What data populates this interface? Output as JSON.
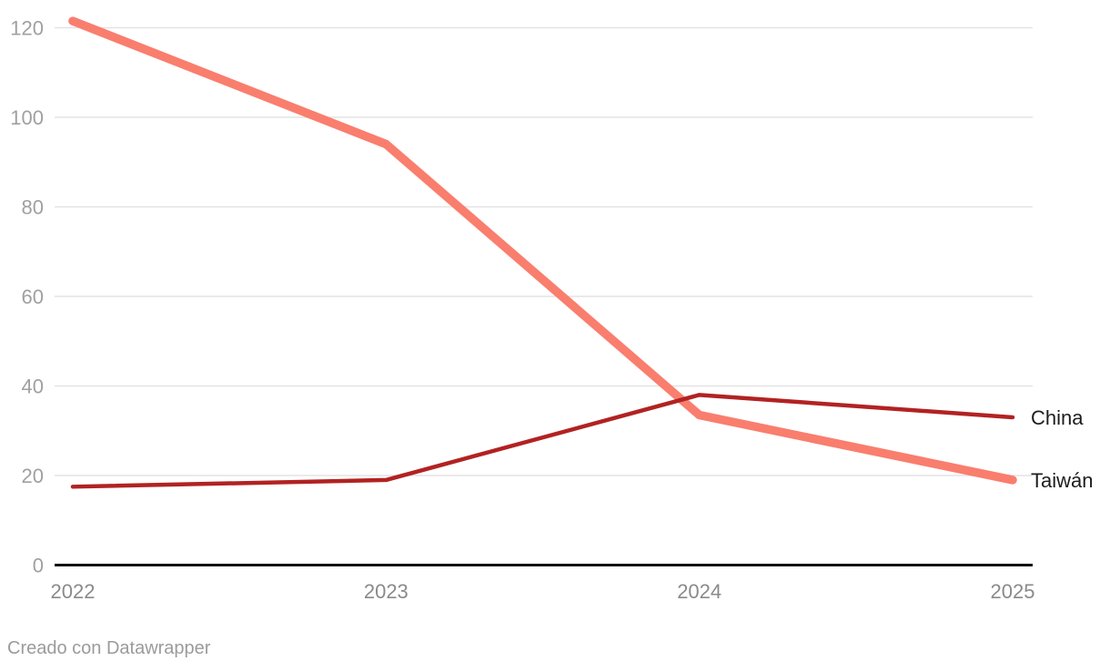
{
  "chart_data": {
    "type": "line",
    "title": "",
    "x_categories": [
      "2022",
      "2023",
      "2024",
      "2025"
    ],
    "series": [
      {
        "name": "China",
        "color": "#b22222",
        "stroke_width": 4.5,
        "values": [
          17.5,
          19,
          38,
          33
        ]
      },
      {
        "name": "Taiwán",
        "color": "#f97e6e",
        "stroke_width": 9.5,
        "values": [
          121.5,
          94,
          33.5,
          19
        ]
      }
    ],
    "ylim": [
      0,
      120
    ],
    "yticks": [
      0,
      20,
      40,
      60,
      80,
      100,
      120
    ],
    "grid": true,
    "legend_position": "direct-labels-right-of-line-ends",
    "draw_order_note": "Taiwán drawn first, China line on top at crossing"
  },
  "colors": {
    "background": "#ffffff",
    "gridline": "#e4e4e4",
    "axis_line": "#121212",
    "y_tick_label": "#a0a0a0",
    "x_tick_label": "#8a8a8a",
    "series_label_text": "#1d1d1d",
    "attribution_text": "#9b9b9b"
  },
  "footer": {
    "attribution": "Creado con Datawrapper"
  }
}
